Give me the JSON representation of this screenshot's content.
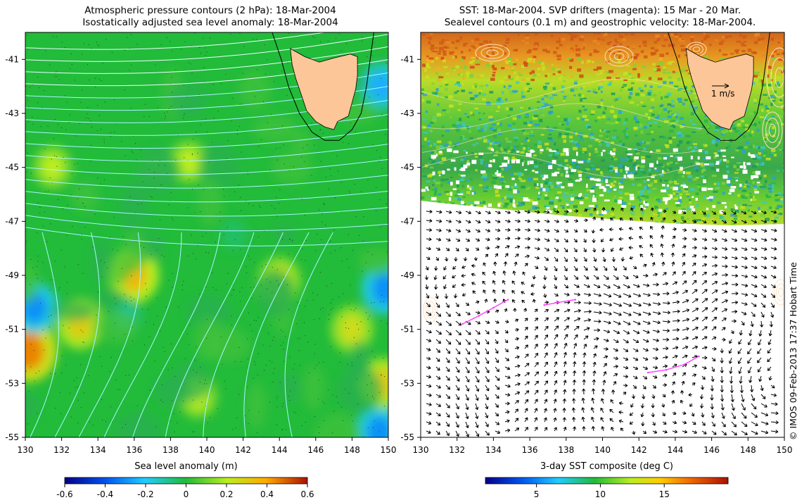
{
  "left_panel": {
    "title_line1": "Atmospheric pressure contours (2 hPa): 18-Mar-2004",
    "title_line2": "Isostatically adjusted sea level anomaly: 18-Mar-2004",
    "colorbar_title": "Sea level anomaly (m)"
  },
  "right_panel": {
    "title_line1": "SST: 18-Mar-2004. SVP drifters (magenta): 15 Mar - 20 Mar.",
    "title_line2": "Sealevel contours (0.1 m) and geostrophic velocity: 18-Mar-2004.",
    "colorbar_title": "3-day SST composite (deg C)",
    "velocity_scale_label": "1 m/s"
  },
  "credit": "© IMOS 09-Feb-2013 17:37 Hobart Time",
  "colors": {
    "land": "#fcc698",
    "ocean_base": "#22bb3a",
    "contour_left": "#c8ffff",
    "contour_right": "#ffe6cc",
    "drifter": "#ff40ff"
  },
  "chart_data": [
    {
      "type": "heatmap",
      "name": "sea-level-anomaly-map",
      "title": "Isostatically adjusted sea level anomaly: 18-Mar-2004",
      "xlabel": "",
      "ylabel": "",
      "xlim": [
        130,
        150
      ],
      "ylim": [
        -55,
        -40
      ],
      "x_ticks": [
        130,
        132,
        134,
        136,
        138,
        140,
        142,
        144,
        146,
        148,
        150
      ],
      "y_ticks": [
        -41,
        -43,
        -45,
        -47,
        -49,
        -51,
        -53,
        -55
      ],
      "colorbar": {
        "label": "Sea level anomaly (m)",
        "min": -0.6,
        "max": 0.6,
        "ticks": [
          -0.6,
          -0.4,
          -0.2,
          0,
          0.2,
          0.4,
          0.6
        ]
      },
      "features": [
        {
          "lon": 136,
          "lat": -49,
          "anomaly": 0.35
        },
        {
          "lon": 139,
          "lat": -44.8,
          "anomaly": 0.2
        },
        {
          "lon": 144,
          "lat": -49.2,
          "anomaly": 0.25
        },
        {
          "lon": 148,
          "lat": -51,
          "anomaly": 0.25
        },
        {
          "lon": 130.2,
          "lat": -51.8,
          "anomaly": 0.45
        },
        {
          "lon": 133,
          "lat": -50.8,
          "anomaly": 0.3
        },
        {
          "lon": 130.5,
          "lat": -50.2,
          "anomaly": -0.3
        },
        {
          "lon": 149.8,
          "lat": -49.5,
          "anomaly": -0.3
        },
        {
          "lon": 149.6,
          "lat": -42,
          "anomaly": -0.25
        },
        {
          "lon": 149.5,
          "lat": -54.8,
          "anomaly": -0.3
        },
        {
          "lon": 131.5,
          "lat": -45,
          "anomaly": 0.2
        },
        {
          "lon": 139.5,
          "lat": -53.5,
          "anomaly": 0.2
        },
        {
          "lon": 149.7,
          "lat": -53,
          "anomaly": 0.3
        },
        {
          "lon": 135.5,
          "lat": -50.5,
          "anomaly": -0.1
        },
        {
          "lon": 141.5,
          "lat": -47.5,
          "anomaly": -0.05
        }
      ]
    },
    {
      "type": "heatmap",
      "name": "sst-composite-map",
      "title": "SST: 18-Mar-2004",
      "xlabel": "",
      "ylabel": "",
      "xlim": [
        130,
        150
      ],
      "ylim": [
        -55,
        -40
      ],
      "x_ticks": [
        130,
        132,
        134,
        136,
        138,
        140,
        142,
        144,
        146,
        148,
        150
      ],
      "y_ticks": [
        -41,
        -43,
        -45,
        -47,
        -49,
        -51,
        -53,
        -55
      ],
      "colorbar": {
        "label": "3-day SST composite (deg C)",
        "min": 1,
        "max": 20,
        "ticks": [
          5,
          10,
          15
        ]
      },
      "sst_profile": [
        {
          "lat": -40,
          "sst": 17.5
        },
        {
          "lat": -41,
          "sst": 16.5
        },
        {
          "lat": -42,
          "sst": 14
        },
        {
          "lat": -43,
          "sst": 12
        },
        {
          "lat": -44,
          "sst": 11.5
        },
        {
          "lat": -45,
          "sst": 11
        },
        {
          "lat": -46,
          "sst": 12
        },
        {
          "lat": -47,
          "sst": 12
        }
      ],
      "drifters": [
        {
          "lon": [
            132.3,
            133.2,
            134.0,
            134.8
          ],
          "lat": [
            -50.8,
            -50.5,
            -50.2,
            -49.9
          ]
        },
        {
          "lon": [
            136.8,
            137.6,
            138.5
          ],
          "lat": [
            -50.1,
            -50.0,
            -49.9
          ]
        },
        {
          "lon": [
            142.5,
            143.5,
            144.5,
            145.3
          ],
          "lat": [
            -52.6,
            -52.5,
            -52.3,
            -52.0
          ]
        }
      ]
    }
  ]
}
